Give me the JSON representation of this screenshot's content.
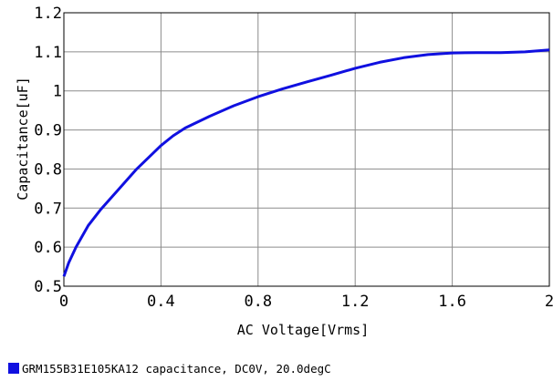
{
  "chart_data": {
    "type": "line",
    "title": "",
    "xlabel": "AC Voltage[Vrms]",
    "ylabel": "Capacitance[uF]",
    "xlim": [
      0,
      2
    ],
    "ylim": [
      0.5,
      1.2
    ],
    "x_ticks": [
      "0",
      "0.4",
      "0.8",
      "1.2",
      "1.6",
      "2"
    ],
    "y_ticks": [
      "0.5",
      "0.6",
      "0.7",
      "0.8",
      "0.9",
      "1",
      "1.1",
      "1.2"
    ],
    "grid": true,
    "legend_position": "bottom-left",
    "series": [
      {
        "name": "GRM155B31E105KA12 capacitance, DC0V, 20.0degC",
        "color": "#1010e0",
        "x": [
          0,
          0.02,
          0.05,
          0.1,
          0.15,
          0.2,
          0.25,
          0.3,
          0.35,
          0.4,
          0.45,
          0.5,
          0.6,
          0.7,
          0.8,
          0.9,
          1.0,
          1.1,
          1.2,
          1.3,
          1.4,
          1.5,
          1.6,
          1.7,
          1.8,
          1.9,
          2.0
        ],
        "y": [
          0.525,
          0.56,
          0.6,
          0.655,
          0.695,
          0.73,
          0.765,
          0.8,
          0.83,
          0.86,
          0.885,
          0.905,
          0.935,
          0.962,
          0.985,
          1.005,
          1.023,
          1.04,
          1.058,
          1.073,
          1.085,
          1.093,
          1.097,
          1.098,
          1.098,
          1.1,
          1.105
        ]
      }
    ]
  }
}
